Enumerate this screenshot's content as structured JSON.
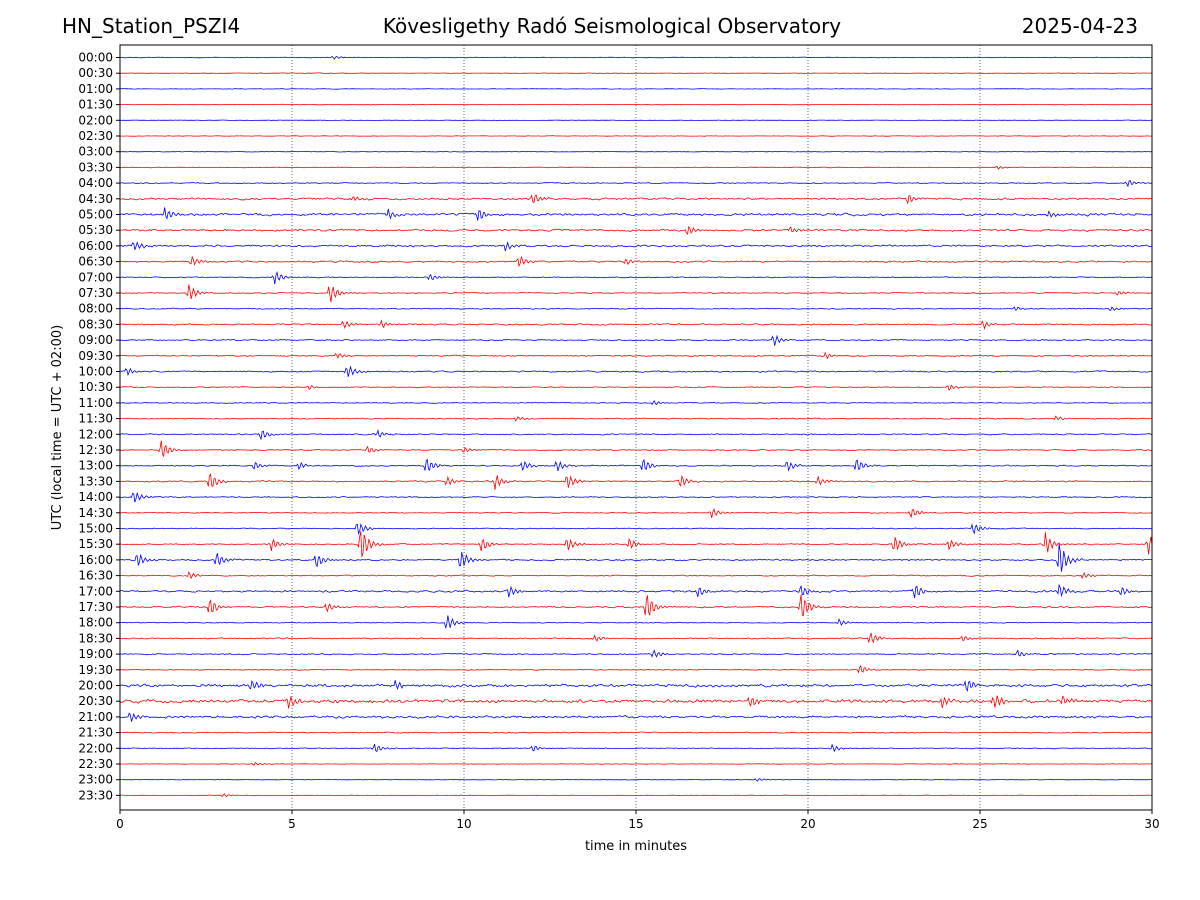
{
  "header": {
    "station": "HN_Station_PSZI4",
    "observatory": "Kövesligethy Radó Seismological Observatory",
    "date": "2025-04-23"
  },
  "chart_data": {
    "type": "line",
    "title": "Kövesligethy Radó Seismological Observatory",
    "xlabel": "time in minutes",
    "ylabel": "UTC (local time = UTC + 02:00)",
    "xlim": [
      0,
      30
    ],
    "x_ticks": [
      "0",
      "5",
      "10",
      "15",
      "20",
      "25",
      "30"
    ],
    "x_tick_values": [
      0,
      5,
      10,
      15,
      20,
      25,
      30
    ],
    "grid": "vertical dotted lines at x ticks",
    "row_colors": [
      "#0000ff",
      "#ff0000"
    ],
    "rows": [
      {
        "label": "00:00",
        "activity": 0.2,
        "events": [
          {
            "t": 6.2,
            "a": 0.3
          }
        ]
      },
      {
        "label": "00:30",
        "activity": 0.15,
        "events": []
      },
      {
        "label": "01:00",
        "activity": 0.15,
        "events": []
      },
      {
        "label": "01:30",
        "activity": 0.15,
        "events": []
      },
      {
        "label": "02:00",
        "activity": 0.15,
        "events": []
      },
      {
        "label": "02:30",
        "activity": 0.15,
        "events": []
      },
      {
        "label": "03:00",
        "activity": 0.18,
        "events": []
      },
      {
        "label": "03:30",
        "activity": 0.2,
        "events": [
          {
            "t": 25.5,
            "a": 0.3
          }
        ]
      },
      {
        "label": "04:00",
        "activity": 0.3,
        "events": [
          {
            "t": 29.3,
            "a": 0.6
          }
        ]
      },
      {
        "label": "04:30",
        "activity": 0.55,
        "events": [
          {
            "t": 12.0,
            "a": 1.0
          },
          {
            "t": 22.9,
            "a": 0.8
          },
          {
            "t": 6.8,
            "a": 0.5
          }
        ]
      },
      {
        "label": "05:00",
        "activity": 0.65,
        "events": [
          {
            "t": 1.3,
            "a": 1.1
          },
          {
            "t": 7.8,
            "a": 0.9
          },
          {
            "t": 10.4,
            "a": 1.1
          },
          {
            "t": 27.0,
            "a": 0.6
          }
        ]
      },
      {
        "label": "05:30",
        "activity": 0.55,
        "events": [
          {
            "t": 16.5,
            "a": 0.8
          },
          {
            "t": 19.5,
            "a": 0.6
          }
        ]
      },
      {
        "label": "06:00",
        "activity": 0.55,
        "events": [
          {
            "t": 0.4,
            "a": 0.9
          },
          {
            "t": 11.2,
            "a": 0.8
          }
        ]
      },
      {
        "label": "06:30",
        "activity": 0.45,
        "events": [
          {
            "t": 2.1,
            "a": 0.8
          },
          {
            "t": 11.6,
            "a": 0.9
          },
          {
            "t": 14.7,
            "a": 0.5
          }
        ]
      },
      {
        "label": "07:00",
        "activity": 0.3,
        "events": [
          {
            "t": 4.5,
            "a": 1.1
          },
          {
            "t": 9.0,
            "a": 0.6
          }
        ]
      },
      {
        "label": "07:30",
        "activity": 0.25,
        "events": [
          {
            "t": 2.0,
            "a": 1.4
          },
          {
            "t": 6.1,
            "a": 1.7
          },
          {
            "t": 29.0,
            "a": 0.4
          }
        ]
      },
      {
        "label": "08:00",
        "activity": 0.3,
        "events": [
          {
            "t": 26.0,
            "a": 0.4
          },
          {
            "t": 28.8,
            "a": 0.4
          }
        ]
      },
      {
        "label": "08:30",
        "activity": 0.4,
        "events": [
          {
            "t": 6.5,
            "a": 0.7
          },
          {
            "t": 7.6,
            "a": 0.6
          },
          {
            "t": 25.1,
            "a": 0.7
          }
        ]
      },
      {
        "label": "09:00",
        "activity": 0.35,
        "events": [
          {
            "t": 19.0,
            "a": 1.0
          }
        ]
      },
      {
        "label": "09:30",
        "activity": 0.35,
        "events": [
          {
            "t": 6.3,
            "a": 0.5
          },
          {
            "t": 20.5,
            "a": 0.5
          }
        ]
      },
      {
        "label": "10:00",
        "activity": 0.4,
        "events": [
          {
            "t": 6.6,
            "a": 1.1
          },
          {
            "t": 0.2,
            "a": 0.6
          }
        ]
      },
      {
        "label": "10:30",
        "activity": 0.3,
        "events": [
          {
            "t": 5.5,
            "a": 0.4
          },
          {
            "t": 24.1,
            "a": 0.5
          }
        ]
      },
      {
        "label": "11:00",
        "activity": 0.25,
        "events": [
          {
            "t": 15.5,
            "a": 0.4
          }
        ]
      },
      {
        "label": "11:30",
        "activity": 0.3,
        "events": [
          {
            "t": 11.5,
            "a": 0.4
          },
          {
            "t": 27.2,
            "a": 0.4
          }
        ]
      },
      {
        "label": "12:00",
        "activity": 0.35,
        "events": [
          {
            "t": 4.1,
            "a": 0.9
          },
          {
            "t": 7.5,
            "a": 0.6
          }
        ]
      },
      {
        "label": "12:30",
        "activity": 0.3,
        "events": [
          {
            "t": 1.2,
            "a": 1.6
          },
          {
            "t": 7.2,
            "a": 0.6
          },
          {
            "t": 10.0,
            "a": 0.5
          }
        ]
      },
      {
        "label": "13:00",
        "activity": 0.35,
        "events": [
          {
            "t": 3.9,
            "a": 0.7
          },
          {
            "t": 5.2,
            "a": 0.6
          },
          {
            "t": 8.9,
            "a": 1.4
          },
          {
            "t": 11.7,
            "a": 0.9
          },
          {
            "t": 12.7,
            "a": 0.9
          },
          {
            "t": 15.2,
            "a": 1.2
          },
          {
            "t": 19.4,
            "a": 0.9
          },
          {
            "t": 21.4,
            "a": 1.2
          }
        ]
      },
      {
        "label": "13:30",
        "activity": 0.4,
        "events": [
          {
            "t": 2.6,
            "a": 1.6
          },
          {
            "t": 9.5,
            "a": 0.8
          },
          {
            "t": 10.9,
            "a": 1.3
          },
          {
            "t": 13.0,
            "a": 1.3
          },
          {
            "t": 16.3,
            "a": 1.1
          },
          {
            "t": 20.3,
            "a": 0.8
          }
        ]
      },
      {
        "label": "14:00",
        "activity": 0.35,
        "events": [
          {
            "t": 0.4,
            "a": 1.1
          }
        ]
      },
      {
        "label": "14:30",
        "activity": 0.25,
        "events": [
          {
            "t": 17.2,
            "a": 0.8
          },
          {
            "t": 23.0,
            "a": 0.9
          }
        ]
      },
      {
        "label": "15:00",
        "activity": 0.3,
        "events": [
          {
            "t": 24.8,
            "a": 1.0
          },
          {
            "t": 6.9,
            "a": 1.2
          }
        ]
      },
      {
        "label": "15:30",
        "activity": 0.35,
        "events": [
          {
            "t": 4.4,
            "a": 1.0
          },
          {
            "t": 7.0,
            "a": 3.0
          },
          {
            "t": 10.5,
            "a": 1.2
          },
          {
            "t": 13.0,
            "a": 1.2
          },
          {
            "t": 14.8,
            "a": 1.0
          },
          {
            "t": 22.5,
            "a": 1.4
          },
          {
            "t": 24.1,
            "a": 0.9
          },
          {
            "t": 26.9,
            "a": 1.8
          },
          {
            "t": 29.9,
            "a": 1.6
          }
        ]
      },
      {
        "label": "16:00",
        "activity": 0.45,
        "events": [
          {
            "t": 0.5,
            "a": 1.2
          },
          {
            "t": 2.8,
            "a": 1.2
          },
          {
            "t": 5.7,
            "a": 1.3
          },
          {
            "t": 9.9,
            "a": 1.7
          },
          {
            "t": 27.3,
            "a": 3.0
          }
        ]
      },
      {
        "label": "16:30",
        "activity": 0.35,
        "events": [
          {
            "t": 2.0,
            "a": 0.6
          },
          {
            "t": 28.0,
            "a": 0.6
          }
        ]
      },
      {
        "label": "17:00",
        "activity": 0.55,
        "events": [
          {
            "t": 11.3,
            "a": 0.9
          },
          {
            "t": 16.8,
            "a": 0.9
          },
          {
            "t": 19.8,
            "a": 1.0
          },
          {
            "t": 23.1,
            "a": 1.3
          },
          {
            "t": 27.3,
            "a": 1.2
          },
          {
            "t": 29.1,
            "a": 0.8
          }
        ]
      },
      {
        "label": "17:30",
        "activity": 0.45,
        "events": [
          {
            "t": 2.6,
            "a": 1.5
          },
          {
            "t": 6.0,
            "a": 0.8
          },
          {
            "t": 15.3,
            "a": 2.4
          },
          {
            "t": 19.8,
            "a": 2.4
          }
        ]
      },
      {
        "label": "18:00",
        "activity": 0.25,
        "events": [
          {
            "t": 9.5,
            "a": 1.4
          },
          {
            "t": 20.9,
            "a": 0.6
          }
        ]
      },
      {
        "label": "18:30",
        "activity": 0.35,
        "events": [
          {
            "t": 13.8,
            "a": 0.5
          },
          {
            "t": 21.8,
            "a": 1.1
          },
          {
            "t": 24.5,
            "a": 0.5
          }
        ]
      },
      {
        "label": "19:00",
        "activity": 0.35,
        "events": [
          {
            "t": 15.5,
            "a": 0.7
          },
          {
            "t": 26.1,
            "a": 0.6
          }
        ]
      },
      {
        "label": "19:30",
        "activity": 0.25,
        "events": [
          {
            "t": 21.5,
            "a": 0.8
          }
        ]
      },
      {
        "label": "20:00",
        "activity": 0.75,
        "events": [
          {
            "t": 3.8,
            "a": 1.0
          },
          {
            "t": 24.6,
            "a": 1.2
          },
          {
            "t": 8.0,
            "a": 0.7
          }
        ]
      },
      {
        "label": "20:30",
        "activity": 0.85,
        "events": [
          {
            "t": 4.9,
            "a": 1.2
          },
          {
            "t": 18.3,
            "a": 1.1
          },
          {
            "t": 23.9,
            "a": 1.0
          },
          {
            "t": 25.4,
            "a": 1.3
          },
          {
            "t": 27.4,
            "a": 0.9
          }
        ]
      },
      {
        "label": "21:00",
        "activity": 0.65,
        "events": [
          {
            "t": 0.3,
            "a": 0.9
          }
        ]
      },
      {
        "label": "21:30",
        "activity": 0.3,
        "events": []
      },
      {
        "label": "22:00",
        "activity": 0.25,
        "events": [
          {
            "t": 7.4,
            "a": 0.8
          },
          {
            "t": 12.0,
            "a": 0.6
          },
          {
            "t": 20.7,
            "a": 0.6
          }
        ]
      },
      {
        "label": "22:30",
        "activity": 0.15,
        "events": [
          {
            "t": 3.9,
            "a": 0.3
          }
        ]
      },
      {
        "label": "23:00",
        "activity": 0.15,
        "events": [
          {
            "t": 18.5,
            "a": 0.3
          }
        ]
      },
      {
        "label": "23:30",
        "activity": 0.15,
        "events": [
          {
            "t": 3.0,
            "a": 0.3
          }
        ]
      }
    ]
  }
}
